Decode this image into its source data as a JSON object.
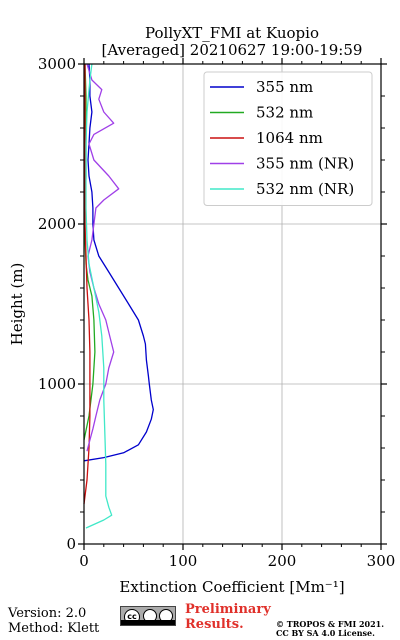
{
  "chart_data": {
    "type": "line",
    "title": "PollyXT_FMI at Kuopio\n[Averaged] 20210627 19:00-19:59",
    "xlabel": "Extinction Coefficient [Mm⁻¹]",
    "ylabel": "Height (m)",
    "xlim": [
      0,
      300
    ],
    "ylim": [
      0,
      3000
    ],
    "xticks": [
      0,
      100,
      200,
      300
    ],
    "yticks": [
      0,
      1000,
      2000,
      3000
    ],
    "grid": true,
    "legend_position": "top-right",
    "series": [
      {
        "name": "355 nm",
        "color": "#0000cc",
        "points": [
          [
            0,
            520
          ],
          [
            20,
            540
          ],
          [
            40,
            570
          ],
          [
            55,
            620
          ],
          [
            63,
            700
          ],
          [
            68,
            780
          ],
          [
            70,
            840
          ],
          [
            68,
            900
          ],
          [
            66,
            1000
          ],
          [
            65,
            1050
          ],
          [
            63,
            1150
          ],
          [
            62,
            1250
          ],
          [
            60,
            1300
          ],
          [
            55,
            1400
          ],
          [
            45,
            1500
          ],
          [
            35,
            1600
          ],
          [
            25,
            1700
          ],
          [
            15,
            1800
          ],
          [
            10,
            1900
          ],
          [
            9,
            2000
          ],
          [
            9,
            2100
          ],
          [
            8,
            2200
          ],
          [
            5,
            2300
          ],
          [
            4,
            2400
          ],
          [
            5,
            2500
          ],
          [
            6,
            2600
          ],
          [
            8,
            2700
          ],
          [
            6,
            2800
          ],
          [
            6,
            2900
          ],
          [
            5,
            3000
          ]
        ]
      },
      {
        "name": "532 nm",
        "color": "#22aa22",
        "points": [
          [
            0,
            650
          ],
          [
            5,
            800
          ],
          [
            9,
            1000
          ],
          [
            11,
            1200
          ],
          [
            10,
            1400
          ],
          [
            8,
            1550
          ],
          [
            4,
            1650
          ],
          [
            2,
            1750
          ],
          [
            1,
            1900
          ],
          [
            1,
            2100
          ],
          [
            2,
            2300
          ],
          [
            2,
            2500
          ],
          [
            2,
            2800
          ],
          [
            1,
            3000
          ]
        ]
      },
      {
        "name": "1064 nm",
        "color": "#cc1111",
        "points": [
          [
            0,
            250
          ],
          [
            3,
            400
          ],
          [
            5,
            600
          ],
          [
            6,
            800
          ],
          [
            6,
            1000
          ],
          [
            6,
            1200
          ],
          [
            5,
            1400
          ],
          [
            3,
            1600
          ],
          [
            2,
            1800
          ],
          [
            1,
            2000
          ],
          [
            1,
            2200
          ],
          [
            1,
            2400
          ],
          [
            1,
            2700
          ],
          [
            1,
            3000
          ]
        ]
      },
      {
        "name": "355 nm (NR)",
        "color": "#a040e8",
        "points": [
          [
            3,
            580
          ],
          [
            6,
            650
          ],
          [
            9,
            720
          ],
          [
            12,
            800
          ],
          [
            16,
            900
          ],
          [
            22,
            1000
          ],
          [
            25,
            1100
          ],
          [
            30,
            1200
          ],
          [
            26,
            1300
          ],
          [
            22,
            1400
          ],
          [
            15,
            1500
          ],
          [
            10,
            1600
          ],
          [
            6,
            1700
          ],
          [
            4,
            1800
          ],
          [
            8,
            1900
          ],
          [
            10,
            2000
          ],
          [
            12,
            2100
          ],
          [
            20,
            2150
          ],
          [
            35,
            2220
          ],
          [
            25,
            2300
          ],
          [
            10,
            2400
          ],
          [
            5,
            2500
          ],
          [
            10,
            2560
          ],
          [
            30,
            2630
          ],
          [
            20,
            2700
          ],
          [
            15,
            2780
          ],
          [
            18,
            2840
          ],
          [
            8,
            2900
          ],
          [
            3,
            3000
          ]
        ]
      },
      {
        "name": "532 nm (NR)",
        "color": "#40e8c8",
        "points": [
          [
            2,
            100
          ],
          [
            20,
            150
          ],
          [
            28,
            180
          ],
          [
            25,
            230
          ],
          [
            22,
            300
          ],
          [
            22,
            500
          ],
          [
            21,
            700
          ],
          [
            20,
            900
          ],
          [
            20,
            1100
          ],
          [
            18,
            1300
          ],
          [
            15,
            1450
          ],
          [
            10,
            1600
          ],
          [
            5,
            1750
          ],
          [
            3,
            1900
          ],
          [
            2,
            2100
          ],
          [
            2,
            2300
          ],
          [
            2,
            2500
          ],
          [
            3,
            2700
          ],
          [
            6,
            2900
          ],
          [
            8,
            3000
          ]
        ]
      }
    ]
  },
  "footer": {
    "version": "Version: 2.0",
    "method": "Method: Klett",
    "preliminary_line1": "Preliminary",
    "preliminary_line2": "Results.",
    "copyright_line1": "© TROPOS & FMI 2021.",
    "copyright_line2": "CC BY SA 4.0 License.",
    "license_badge": "cc by sa"
  }
}
